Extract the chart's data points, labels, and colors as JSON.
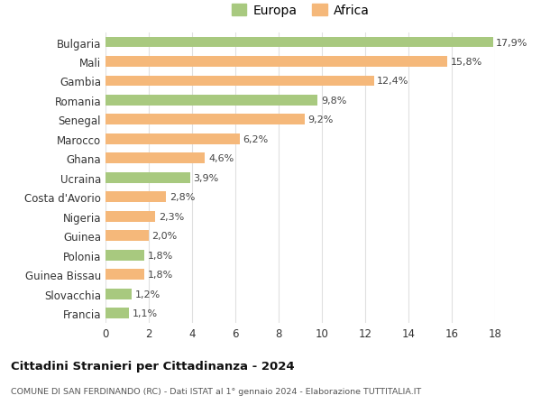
{
  "categories": [
    "Francia",
    "Slovacchia",
    "Guinea Bissau",
    "Polonia",
    "Guinea",
    "Nigeria",
    "Costa d'Avorio",
    "Ucraina",
    "Ghana",
    "Marocco",
    "Senegal",
    "Romania",
    "Gambia",
    "Mali",
    "Bulgaria"
  ],
  "values": [
    1.1,
    1.2,
    1.8,
    1.8,
    2.0,
    2.3,
    2.8,
    3.9,
    4.6,
    6.2,
    9.2,
    9.8,
    12.4,
    15.8,
    17.9
  ],
  "labels": [
    "1,1%",
    "1,2%",
    "1,8%",
    "1,8%",
    "2,0%",
    "2,3%",
    "2,8%",
    "3,9%",
    "4,6%",
    "6,2%",
    "9,2%",
    "9,8%",
    "12,4%",
    "15,8%",
    "17,9%"
  ],
  "colors": [
    "#a8c97f",
    "#a8c97f",
    "#f5b87a",
    "#a8c97f",
    "#f5b87a",
    "#f5b87a",
    "#f5b87a",
    "#a8c97f",
    "#f5b87a",
    "#f5b87a",
    "#f5b87a",
    "#a8c97f",
    "#f5b87a",
    "#f5b87a",
    "#a8c97f"
  ],
  "europa_color": "#a8c97f",
  "africa_color": "#f5b87a",
  "xlim": [
    0,
    18
  ],
  "xticks": [
    0,
    2,
    4,
    6,
    8,
    10,
    12,
    14,
    16,
    18
  ],
  "title": "Cittadini Stranieri per Cittadinanza - 2024",
  "subtitle": "COMUNE DI SAN FERDINANDO (RC) - Dati ISTAT al 1° gennaio 2024 - Elaborazione TUTTITALIA.IT",
  "legend_europa": "Europa",
  "legend_africa": "Africa",
  "background_color": "#ffffff",
  "grid_color": "#e0e0e0",
  "bar_height": 0.55,
  "label_fontsize": 8,
  "tick_fontsize": 8.5,
  "legend_fontsize": 10
}
